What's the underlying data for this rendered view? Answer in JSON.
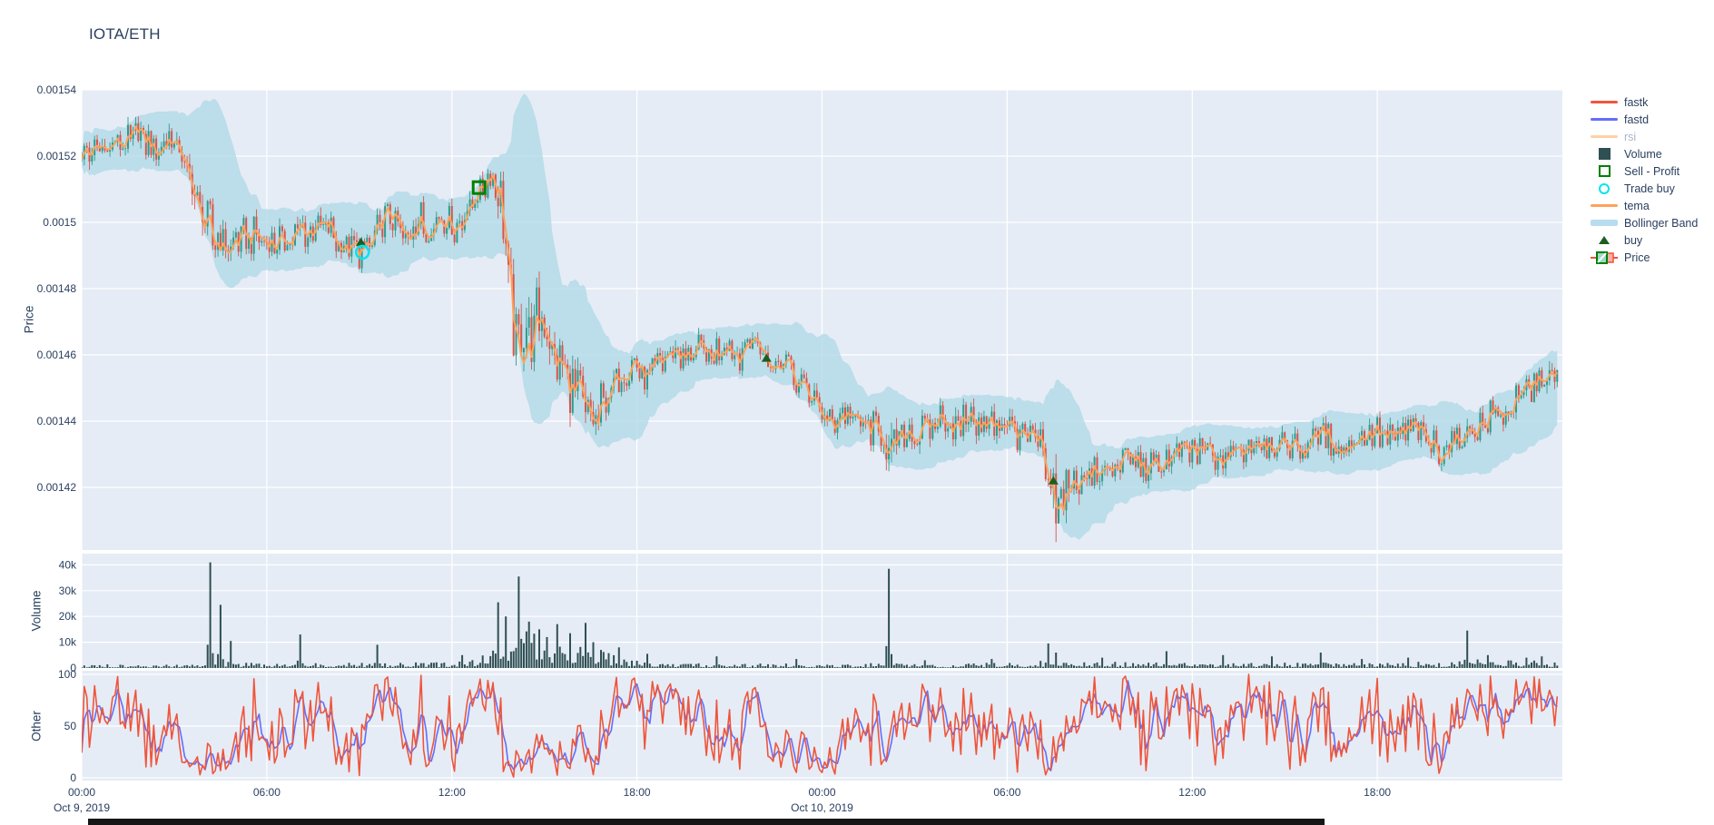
{
  "title": "IOTA/ETH",
  "colors": {
    "plot_bg": "#E5ECF6",
    "grid": "#ffffff",
    "text": "#2a3f5f",
    "muted_text": "#a9b6c9",
    "candle_up": "#2E9C8B",
    "candle_down": "#DA5448",
    "tema": "#FFA15A",
    "fastk": "#EF553B",
    "fastd": "#636EFA",
    "rsi_faded": "#ffd1a6",
    "bollinger": "#ADD8E6",
    "volume_bar": "#2F4F53",
    "buy": "#1B5E20",
    "sell_profit": "#008000",
    "trade_buy": "#00E5F0",
    "bottom_bar": "#161616"
  },
  "legend": {
    "items": [
      {
        "id": "fastk",
        "label": "fastk",
        "swatch": "line",
        "color": "#EF553B",
        "muted": false
      },
      {
        "id": "fastd",
        "label": "fastd",
        "swatch": "line",
        "color": "#636EFA",
        "muted": false
      },
      {
        "id": "rsi",
        "label": "rsi",
        "swatch": "line",
        "color": "#ffd1a6",
        "muted": true
      },
      {
        "id": "volume",
        "label": "Volume",
        "swatch": "square",
        "color": "#2F4F53",
        "muted": false
      },
      {
        "id": "sell-profit",
        "label": "Sell - Profit",
        "swatch": "opensquare",
        "color": "#008000",
        "muted": false
      },
      {
        "id": "trade-buy",
        "label": "Trade buy",
        "swatch": "opencircle",
        "color": "#00E5F0",
        "muted": false
      },
      {
        "id": "tema",
        "label": "tema",
        "swatch": "line",
        "color": "#FFA15A",
        "muted": false
      },
      {
        "id": "bollinger",
        "label": "Bollinger Band",
        "swatch": "thickline",
        "color": "#B8DCF0",
        "muted": false
      },
      {
        "id": "buy",
        "label": "buy",
        "swatch": "triangle",
        "color": "#1B5E20",
        "muted": false
      },
      {
        "id": "price",
        "label": "Price",
        "swatch": "candle",
        "color": "#2E9C8B",
        "muted": false
      }
    ]
  },
  "axes": {
    "price": {
      "title": "Price",
      "ticks": [
        {
          "label": "0.00154",
          "value": 0.00154
        },
        {
          "label": "0.00152",
          "value": 0.00152
        },
        {
          "label": "0.0015",
          "value": 0.0015
        },
        {
          "label": "0.00148",
          "value": 0.00148
        },
        {
          "label": "0.00146",
          "value": 0.00146
        },
        {
          "label": "0.00144",
          "value": 0.00144
        },
        {
          "label": "0.00142",
          "value": 0.00142
        }
      ]
    },
    "volume": {
      "title": "Volume",
      "ticks": [
        {
          "label": "0",
          "value": 0
        },
        {
          "label": "10k",
          "value": 10000
        },
        {
          "label": "20k",
          "value": 20000
        },
        {
          "label": "30k",
          "value": 30000
        },
        {
          "label": "40k",
          "value": 40000
        }
      ]
    },
    "other": {
      "title": "Other",
      "ticks": [
        {
          "label": "0",
          "value": 0
        },
        {
          "label": "50",
          "value": 50
        },
        {
          "label": "100",
          "value": 100
        }
      ]
    },
    "x": {
      "ticks": [
        {
          "label": "00:00",
          "hour": 0
        },
        {
          "label": "06:00",
          "hour": 6
        },
        {
          "label": "12:00",
          "hour": 12
        },
        {
          "label": "18:00",
          "hour": 18
        },
        {
          "label": "00:00",
          "hour": 24
        },
        {
          "label": "06:00",
          "hour": 30
        },
        {
          "label": "12:00",
          "hour": 36
        },
        {
          "label": "18:00",
          "hour": 42
        }
      ],
      "date_labels": [
        {
          "label": "Oct 9, 2019",
          "hour": 0
        },
        {
          "label": "Oct 10, 2019",
          "hour": 24
        }
      ]
    }
  },
  "chart_data": [
    {
      "type": "candlestick",
      "panel": "price",
      "ylabel": "Price",
      "ylim": [
        0.0014011,
        0.0015438
      ],
      "x_hours_range": [
        0,
        47.92
      ],
      "candle_interval_minutes": 5,
      "overlays": [
        "tema",
        "bollinger_band_sma20_2sd"
      ],
      "legendonly_series": [
        "rsi"
      ],
      "base_noise_amp": 4.2e-06,
      "price_keyframes": [
        [
          0,
          0.00152
        ],
        [
          0.5,
          0.001522
        ],
        [
          1.2,
          0.001524
        ],
        [
          1.8,
          0.001527
        ],
        [
          2.3,
          0.001523
        ],
        [
          2.8,
          0.001526
        ],
        [
          3.2,
          0.001522
        ],
        [
          3.6,
          0.001511
        ],
        [
          4.0,
          0.0015
        ],
        [
          4.3,
          0.001495
        ],
        [
          4.8,
          0.001494
        ],
        [
          5.5,
          0.001496
        ],
        [
          6.2,
          0.001493
        ],
        [
          6.8,
          0.001495
        ],
        [
          7.5,
          0.001499
        ],
        [
          8.2,
          0.001496
        ],
        [
          8.7,
          0.001493
        ],
        [
          9.0,
          0.00149
        ],
        [
          9.4,
          0.001494
        ],
        [
          10.0,
          0.001503
        ],
        [
          10.4,
          0.001494
        ],
        [
          10.9,
          0.001503
        ],
        [
          11.2,
          0.001497
        ],
        [
          11.7,
          0.001502
        ],
        [
          12.1,
          0.001498
        ],
        [
          12.5,
          0.001503
        ],
        [
          12.9,
          0.00151
        ],
        [
          13.2,
          0.001513
        ],
        [
          13.45,
          0.001511
        ],
        [
          13.7,
          0.001495
        ],
        [
          13.9,
          0.001477
        ],
        [
          14.1,
          0.001468
        ],
        [
          14.35,
          0.001474
        ],
        [
          14.6,
          0.001464
        ],
        [
          14.9,
          0.001471
        ],
        [
          15.2,
          0.001464
        ],
        [
          15.6,
          0.001455
        ],
        [
          16.0,
          0.001447
        ],
        [
          16.5,
          0.00144
        ],
        [
          16.8,
          0.001443
        ],
        [
          17.2,
          0.001449
        ],
        [
          17.6,
          0.001455
        ],
        [
          18.0,
          0.001457
        ],
        [
          18.4,
          0.001452
        ],
        [
          18.8,
          0.001457
        ],
        [
          19.2,
          0.001461
        ],
        [
          19.6,
          0.001459
        ],
        [
          20.0,
          0.001462
        ],
        [
          20.4,
          0.001459
        ],
        [
          20.8,
          0.001464
        ],
        [
          21.3,
          0.001461
        ],
        [
          21.8,
          0.001464
        ],
        [
          22.3,
          0.001458
        ],
        [
          22.8,
          0.001461
        ],
        [
          23.2,
          0.001453
        ],
        [
          23.6,
          0.001448
        ],
        [
          24.0,
          0.001442
        ],
        [
          24.4,
          0.001439
        ],
        [
          24.8,
          0.001443
        ],
        [
          25.3,
          0.001439
        ],
        [
          25.8,
          0.001437
        ],
        [
          26.05,
          0.001434
        ],
        [
          26.15,
          0.001424
        ],
        [
          26.35,
          0.001432
        ],
        [
          26.8,
          0.001438
        ],
        [
          27.3,
          0.001435
        ],
        [
          27.8,
          0.001441
        ],
        [
          28.3,
          0.001437
        ],
        [
          28.8,
          0.001441
        ],
        [
          29.3,
          0.001437
        ],
        [
          29.8,
          0.001441
        ],
        [
          30.3,
          0.001437
        ],
        [
          30.8,
          0.001434
        ],
        [
          31.1,
          0.001432
        ],
        [
          31.3,
          0.00142
        ],
        [
          31.6,
          0.001416
        ],
        [
          32.0,
          0.001421
        ],
        [
          32.5,
          0.001424
        ],
        [
          33.0,
          0.001422
        ],
        [
          33.5,
          0.001426
        ],
        [
          34.0,
          0.001428
        ],
        [
          34.6,
          0.001425
        ],
        [
          35.2,
          0.001429
        ],
        [
          36.0,
          0.001431
        ],
        [
          36.8,
          0.001428
        ],
        [
          37.6,
          0.001432
        ],
        [
          38.4,
          0.001434
        ],
        [
          39.2,
          0.001431
        ],
        [
          40.0,
          0.001435
        ],
        [
          40.8,
          0.001432
        ],
        [
          41.6,
          0.001437
        ],
        [
          42.4,
          0.001434
        ],
        [
          43.2,
          0.001437
        ],
        [
          44.0,
          0.001431
        ],
        [
          44.6,
          0.001434
        ],
        [
          45.2,
          0.001438
        ],
        [
          45.8,
          0.001441
        ],
        [
          46.3,
          0.001444
        ],
        [
          46.8,
          0.001448
        ],
        [
          47.3,
          0.001452
        ],
        [
          47.7,
          0.001454
        ],
        [
          47.92,
          0.001448
        ]
      ],
      "noise_amp_keyframes": [
        [
          0,
          1
        ],
        [
          3.3,
          1
        ],
        [
          3.6,
          1.8
        ],
        [
          4.4,
          1.4
        ],
        [
          5,
          1
        ],
        [
          13.3,
          1
        ],
        [
          13.6,
          2.2
        ],
        [
          14.3,
          2.6
        ],
        [
          15,
          2
        ],
        [
          16.6,
          1.6
        ],
        [
          17.5,
          1.1
        ],
        [
          20,
          0.9
        ],
        [
          23,
          0.9
        ],
        [
          26.0,
          1
        ],
        [
          26.2,
          2.2
        ],
        [
          26.5,
          1.2
        ],
        [
          31.1,
          1
        ],
        [
          31.4,
          2.6
        ],
        [
          32.2,
          1.4
        ],
        [
          33,
          1
        ],
        [
          44,
          0.9
        ],
        [
          46,
          1
        ],
        [
          47.9,
          1.1
        ]
      ],
      "markers": {
        "buy_triangles": [
          [
            9.05,
            0.001494
          ],
          [
            22.2,
            0.001459
          ],
          [
            31.5,
            0.001422
          ]
        ],
        "trade_buy_circles": [
          [
            9.1,
            0.001491
          ]
        ],
        "sell_profit_squares": [
          [
            12.88,
            0.0015105
          ]
        ]
      }
    },
    {
      "type": "bar",
      "panel": "volume",
      "ylabel": "Volume",
      "ylim": [
        0,
        44000
      ],
      "base_keyframes": [
        [
          0,
          900
        ],
        [
          3,
          900
        ],
        [
          4,
          1500
        ],
        [
          5,
          1200
        ],
        [
          7,
          1100
        ],
        [
          12,
          1300
        ],
        [
          13.4,
          4000
        ],
        [
          14,
          9000
        ],
        [
          15,
          7000
        ],
        [
          16.5,
          5000
        ],
        [
          17.5,
          2500
        ],
        [
          19,
          1400
        ],
        [
          21,
          1100
        ],
        [
          24,
          900
        ],
        [
          26,
          1200
        ],
        [
          28,
          900
        ],
        [
          31,
          1500
        ],
        [
          32,
          2500
        ],
        [
          33,
          1500
        ],
        [
          36,
          1100
        ],
        [
          40,
          1200
        ],
        [
          44,
          1400
        ],
        [
          45,
          2200
        ],
        [
          47.9,
          1600
        ]
      ],
      "volume_spikes": [
        [
          4.2,
          41000
        ],
        [
          4.5,
          24500
        ],
        [
          4.8,
          10500
        ],
        [
          7.1,
          13000
        ],
        [
          9.6,
          9000
        ],
        [
          12.3,
          5000
        ],
        [
          13.5,
          25500
        ],
        [
          13.75,
          20000
        ],
        [
          14.2,
          35500
        ],
        [
          14.5,
          18000
        ],
        [
          14.8,
          15000
        ],
        [
          15.1,
          12000
        ],
        [
          15.4,
          17000
        ],
        [
          15.8,
          13500
        ],
        [
          16.3,
          17500
        ],
        [
          16.6,
          10000
        ],
        [
          17.4,
          8000
        ],
        [
          18.3,
          5500
        ],
        [
          20.6,
          4500
        ],
        [
          23.2,
          3500
        ],
        [
          26.15,
          38500
        ],
        [
          27.3,
          3000
        ],
        [
          29.5,
          3500
        ],
        [
          31.35,
          9500
        ],
        [
          31.6,
          6000
        ],
        [
          33.1,
          4000
        ],
        [
          35.2,
          6500
        ],
        [
          37.0,
          5000
        ],
        [
          38.6,
          4500
        ],
        [
          40.2,
          6000
        ],
        [
          41.5,
          3500
        ],
        [
          43.0,
          4000
        ],
        [
          44.9,
          14500
        ],
        [
          45.6,
          5000
        ],
        [
          46.8,
          4000
        ],
        [
          47.3,
          4500
        ]
      ]
    },
    {
      "type": "line",
      "panel": "other",
      "ylabel": "Other",
      "ylim": [
        0,
        100
      ],
      "series": [
        {
          "name": "fastk",
          "color": "#EF553B",
          "derive": "stochastic_pct_k_window14"
        },
        {
          "name": "fastd",
          "color": "#636EFA",
          "derive": "sma3_of_fastk"
        }
      ]
    }
  ]
}
